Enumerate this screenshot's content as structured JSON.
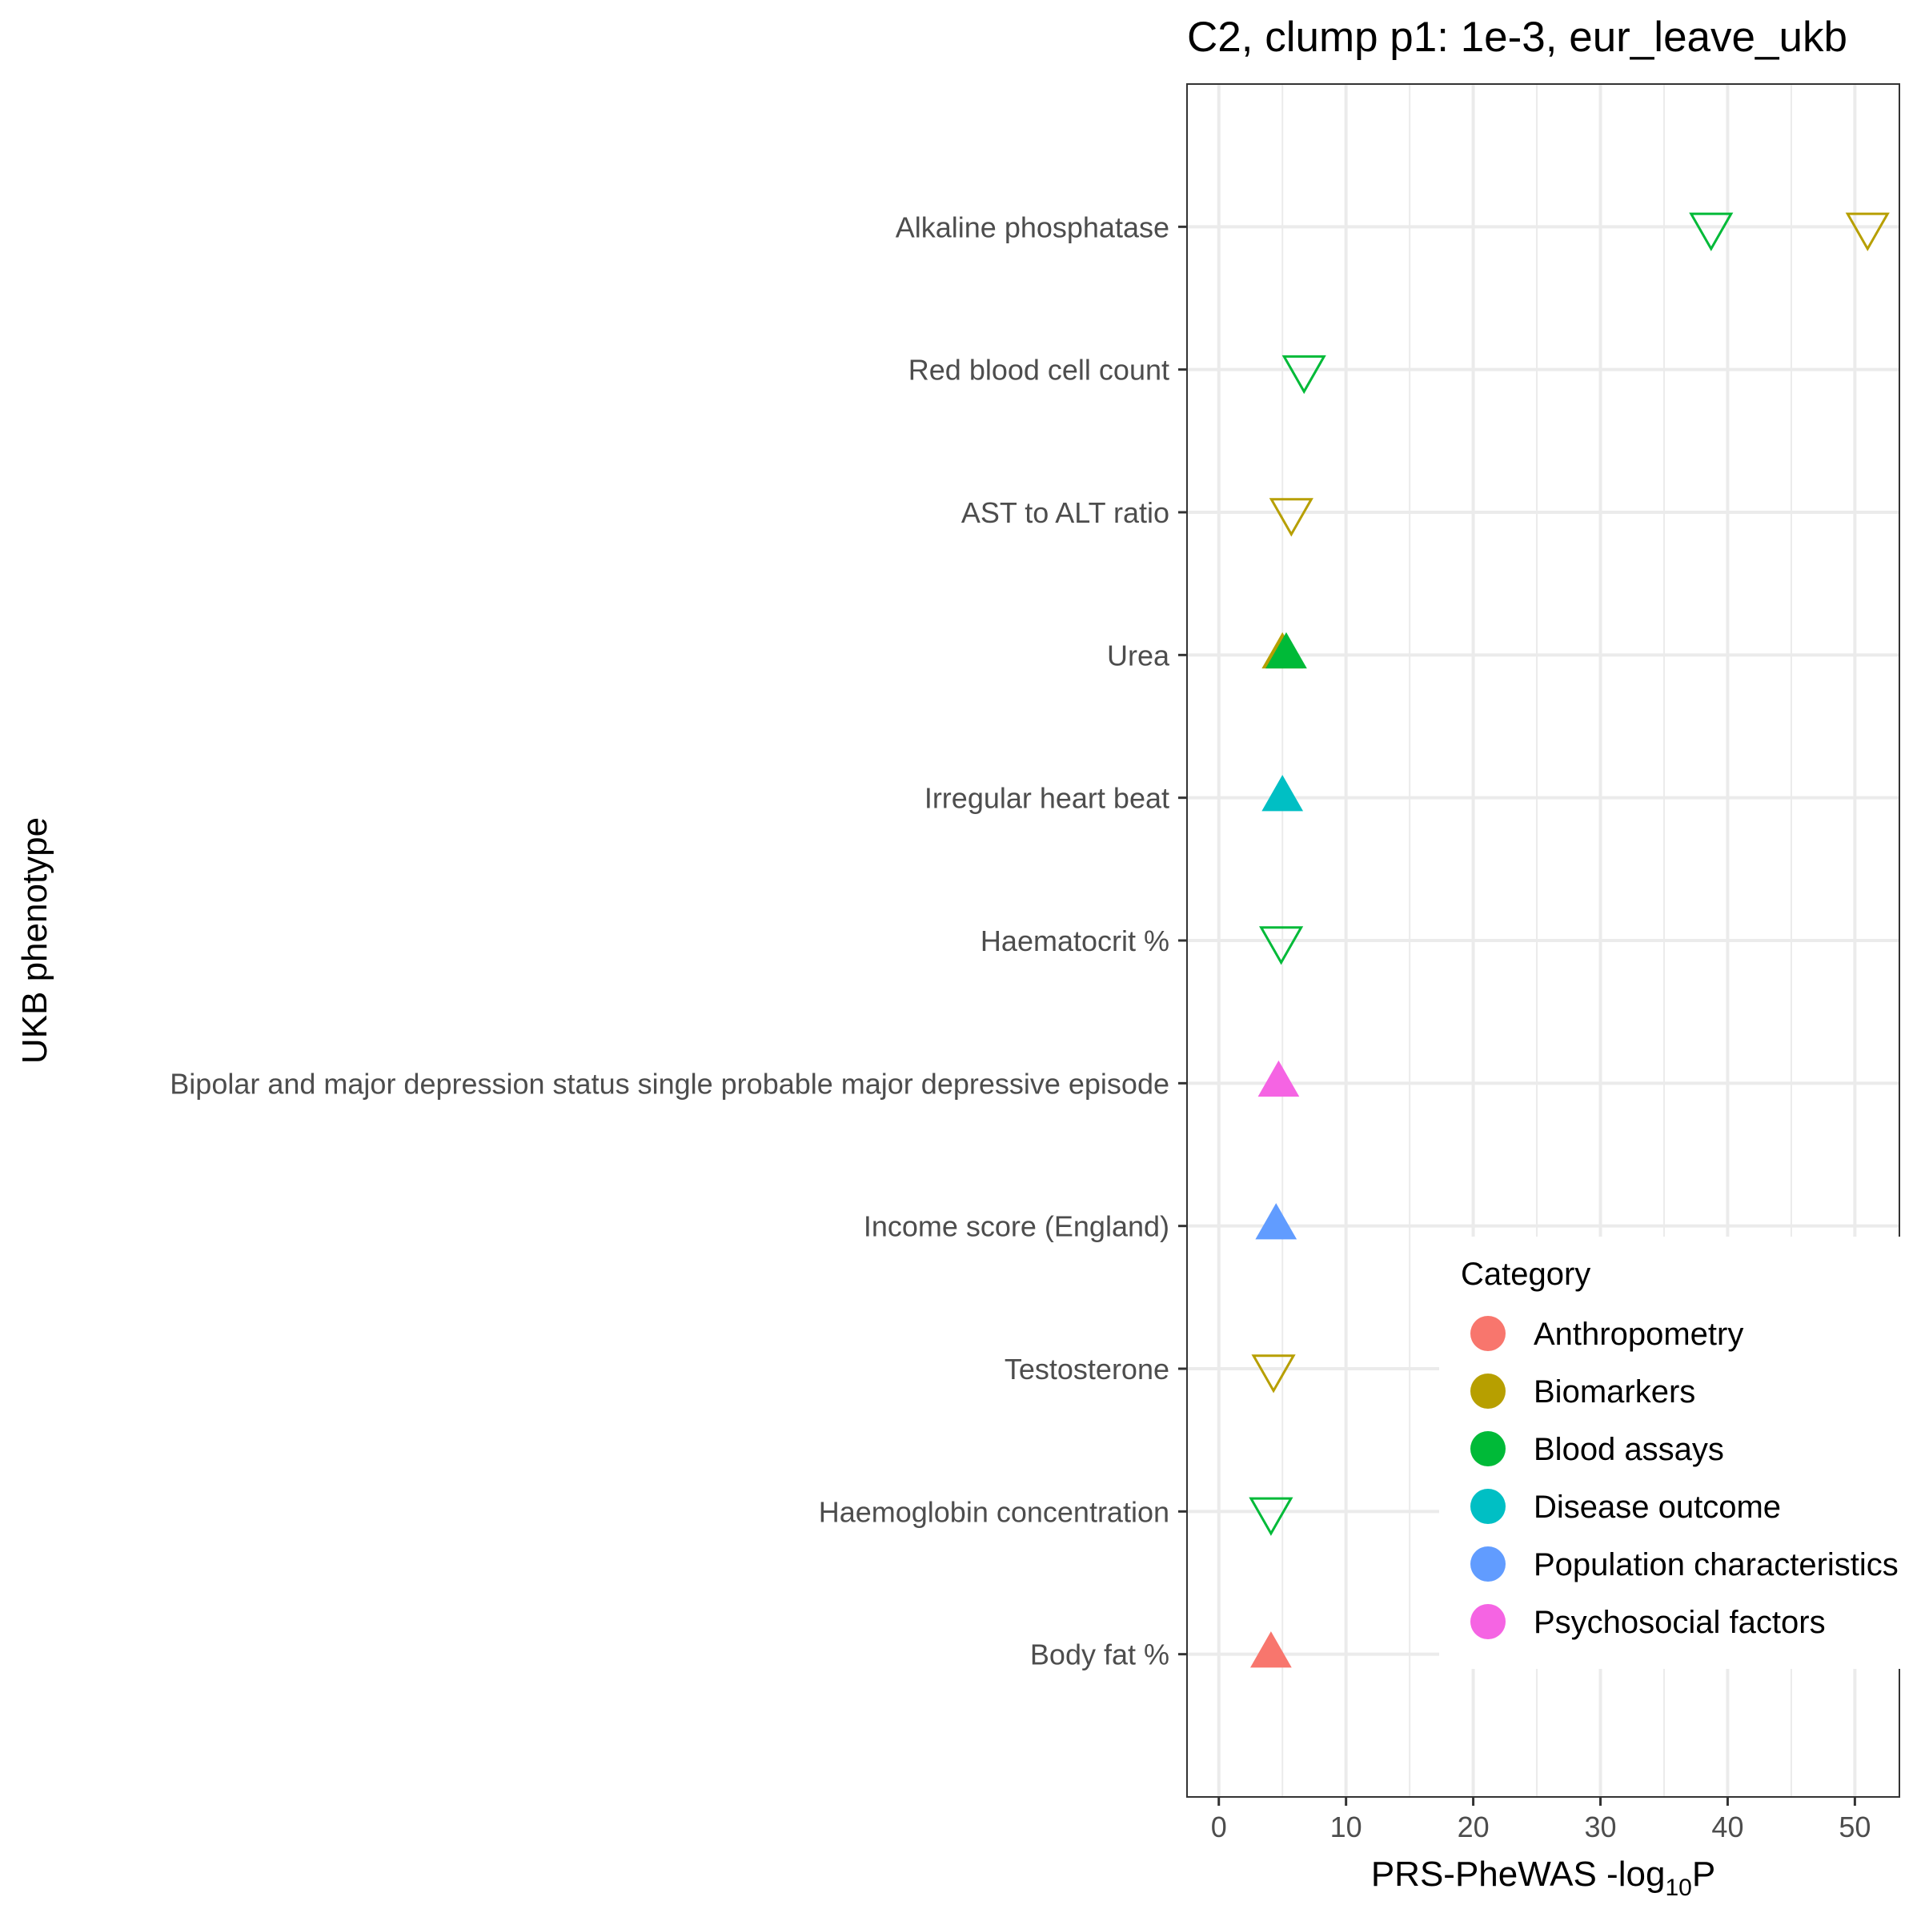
{
  "chart_data": {
    "type": "scatter",
    "title": "C2, clump p1: 1e-3, eur_leave_ukb",
    "xlabel": "PRS-PheWAS -log",
    "xlabel_subscript": "10",
    "xlabel_suffix": "P",
    "ylabel": "UKB phenotype",
    "xlim": [
      -2.5,
      53.5
    ],
    "xticks": [
      0,
      10,
      20,
      30,
      40,
      50
    ],
    "grid": true,
    "categories": [
      "Body fat %",
      "Haemoglobin concentration",
      "Testosterone",
      "Income score (England)",
      "Bipolar and major depression status single probable major depressive episode",
      "Haematocrit %",
      "Irregular heart beat",
      "Urea",
      "AST to ALT ratio",
      "Red blood cell count",
      "Alkaline phosphatase"
    ],
    "points": [
      {
        "phenotype": "Alkaline phosphatase",
        "x": 38.7,
        "category": "Blood assays",
        "direction": "negative"
      },
      {
        "phenotype": "Alkaline phosphatase",
        "x": 51.0,
        "category": "Biomarkers",
        "direction": "negative"
      },
      {
        "phenotype": "Red blood cell count",
        "x": 6.7,
        "category": "Blood assays",
        "direction": "negative"
      },
      {
        "phenotype": "AST to ALT ratio",
        "x": 5.7,
        "category": "Biomarkers",
        "direction": "negative"
      },
      {
        "phenotype": "Urea",
        "x": 5.0,
        "category": "Biomarkers",
        "direction": "positive"
      },
      {
        "phenotype": "Urea",
        "x": 5.3,
        "category": "Blood assays",
        "direction": "positive"
      },
      {
        "phenotype": "Irregular heart beat",
        "x": 5.0,
        "category": "Disease outcome",
        "direction": "positive"
      },
      {
        "phenotype": "Haematocrit %",
        "x": 4.9,
        "category": "Blood assays",
        "direction": "negative"
      },
      {
        "phenotype": "Bipolar and major depression status single probable major depressive episode",
        "x": 4.7,
        "category": "Psychosocial factors",
        "direction": "positive"
      },
      {
        "phenotype": "Income score (England)",
        "x": 4.5,
        "category": "Population characteristics",
        "direction": "positive"
      },
      {
        "phenotype": "Testosterone",
        "x": 4.3,
        "category": "Biomarkers",
        "direction": "negative"
      },
      {
        "phenotype": "Haemoglobin concentration",
        "x": 4.1,
        "category": "Blood assays",
        "direction": "negative"
      },
      {
        "phenotype": "Body fat %",
        "x": 4.1,
        "category": "Anthropometry",
        "direction": "positive"
      }
    ],
    "legend": {
      "title": "Category",
      "placement": "bottom-right",
      "entries": [
        {
          "label": "Anthropometry",
          "color": "#F8766D"
        },
        {
          "label": "Biomarkers",
          "color": "#B79F00"
        },
        {
          "label": "Blood assays",
          "color": "#00BA38"
        },
        {
          "label": "Disease outcome",
          "color": "#00BFC4"
        },
        {
          "label": "Population characteristics",
          "color": "#619CFF"
        },
        {
          "label": "Psychosocial factors",
          "color": "#F564E3"
        }
      ]
    }
  }
}
